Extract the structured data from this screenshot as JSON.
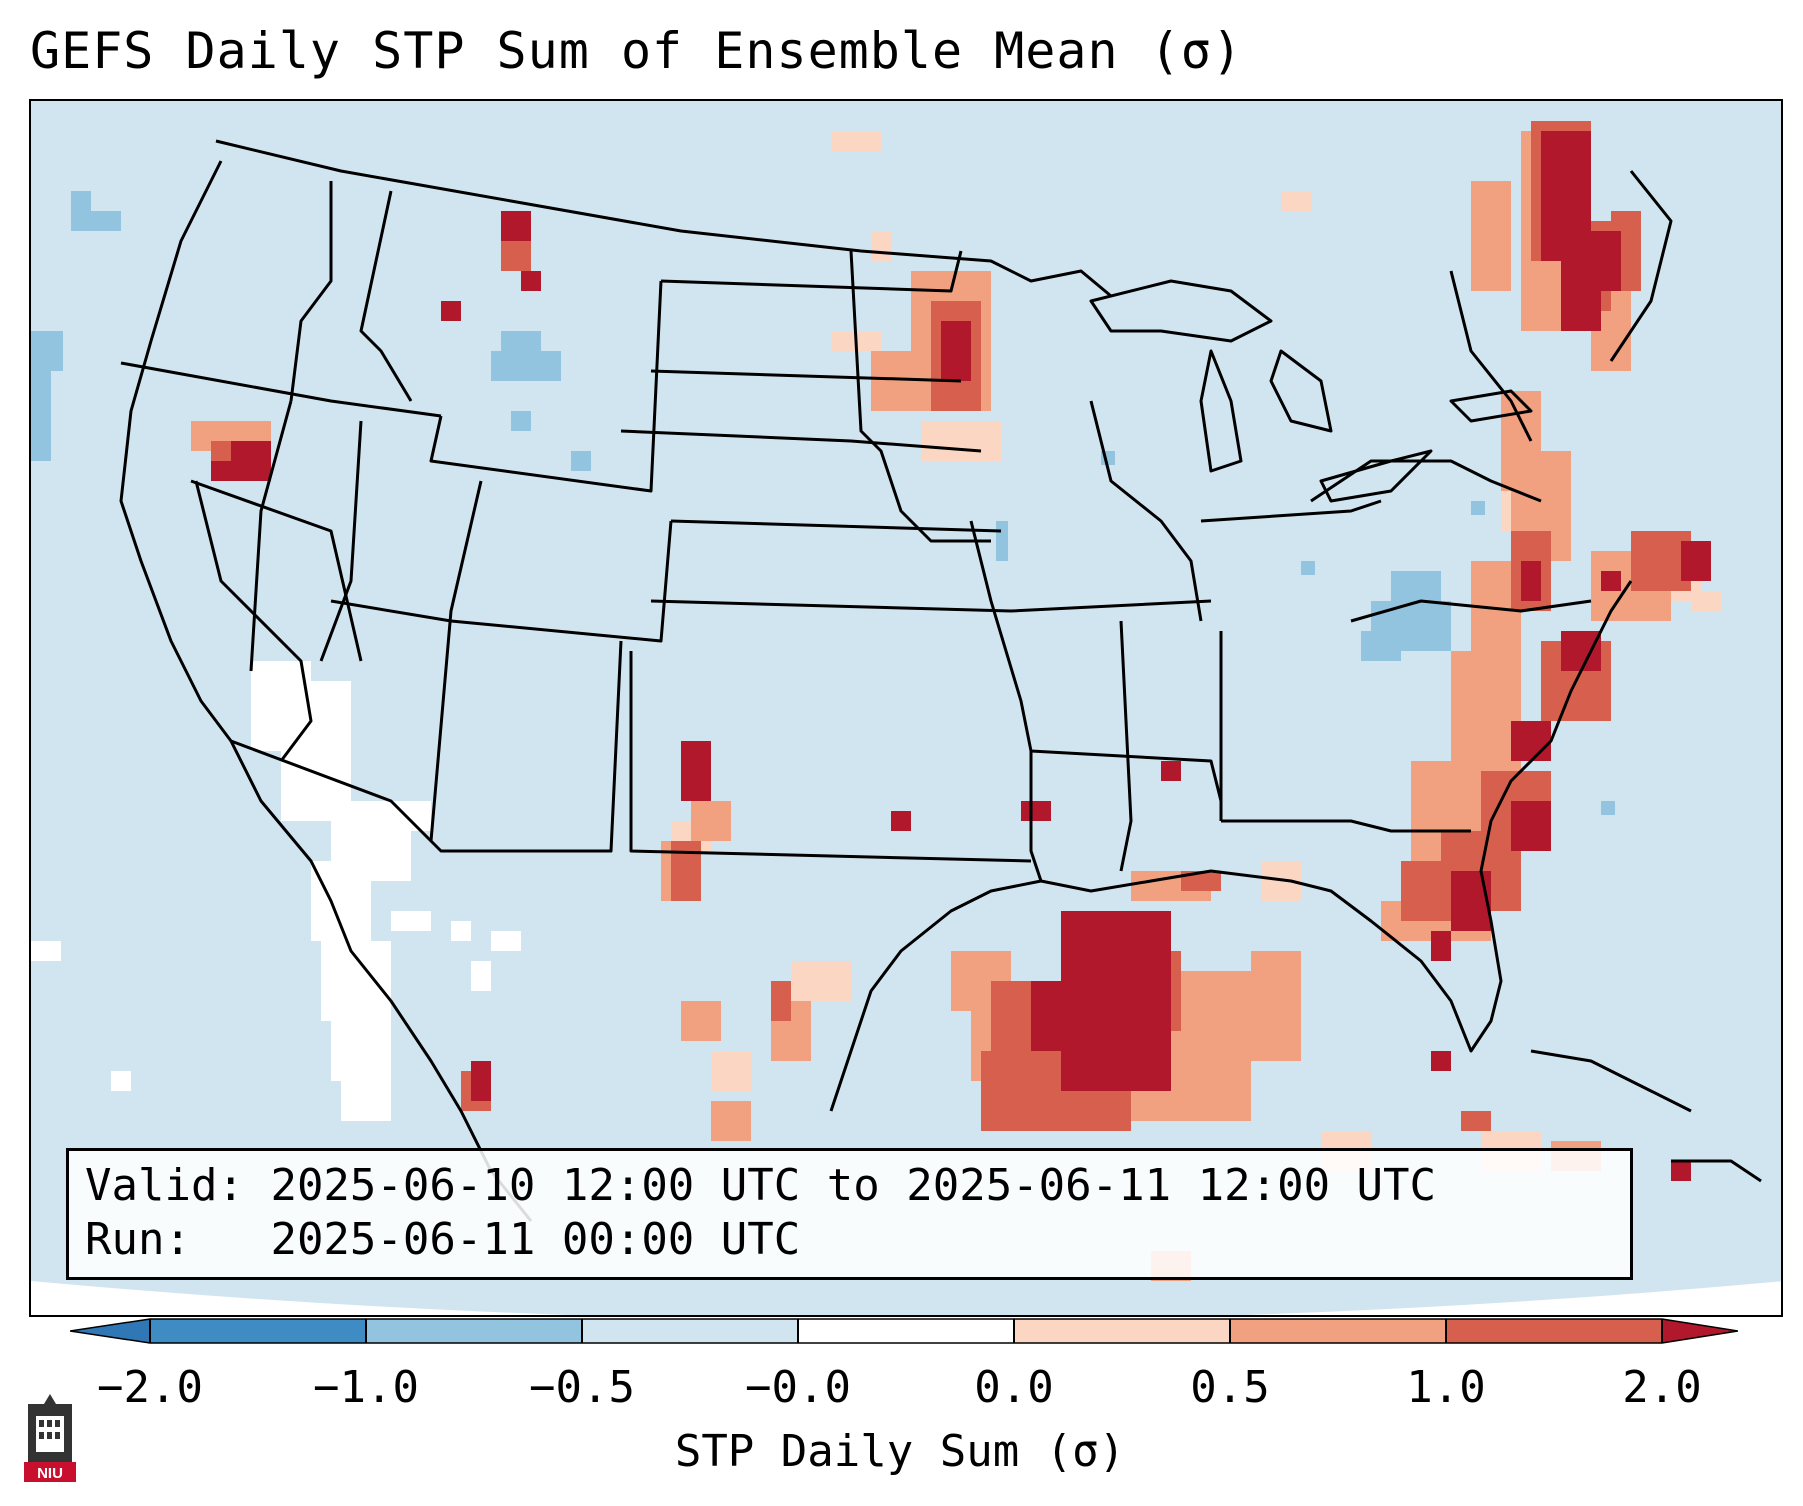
{
  "title": "GEFS Daily STP Sum of Ensemble Mean (σ)",
  "info": {
    "valid_label": "Valid:",
    "valid_value": "2025-06-10 12:00 UTC to 2025-06-11 12:00 UTC",
    "run_label": "Run:",
    "run_value": "2025-06-11 00:00 UTC"
  },
  "colorbar": {
    "label": "STP Daily Sum (σ)",
    "ticks": [
      "−2.0",
      "−1.0",
      "−0.5",
      "−0.0",
      "0.0",
      "0.5",
      "1.0",
      "2.0"
    ],
    "bins": [
      {
        "range": "< -2.0",
        "color": "#2f77b5"
      },
      {
        "range": "-2.0 to -1.0",
        "color": "#3f8cc4"
      },
      {
        "range": "-1.0 to -0.5",
        "color": "#93c4df"
      },
      {
        "range": "-0.5 to -0.0",
        "color": "#d1e5f0"
      },
      {
        "range": "-0.0 to 0.0",
        "color": "#ffffff"
      },
      {
        "range": "0.0 to 0.5",
        "color": "#fbd6c3"
      },
      {
        "range": "0.5 to 1.0",
        "color": "#f1a080"
      },
      {
        "range": "1.0 to 2.0",
        "color": "#d6604d"
      },
      {
        "range": "> 2.0",
        "color": "#b2182b"
      }
    ]
  },
  "colors": {
    "background": "#d1e5f0",
    "neutral": "#ffffff",
    "light_blue": "#93c4df",
    "light_red": "#fbd6c3",
    "mid_red": "#f1a080",
    "red": "#d6604d",
    "dark_red": "#b2182b"
  },
  "logo": {
    "text": "NIU",
    "icon": "university-tower-icon"
  }
}
